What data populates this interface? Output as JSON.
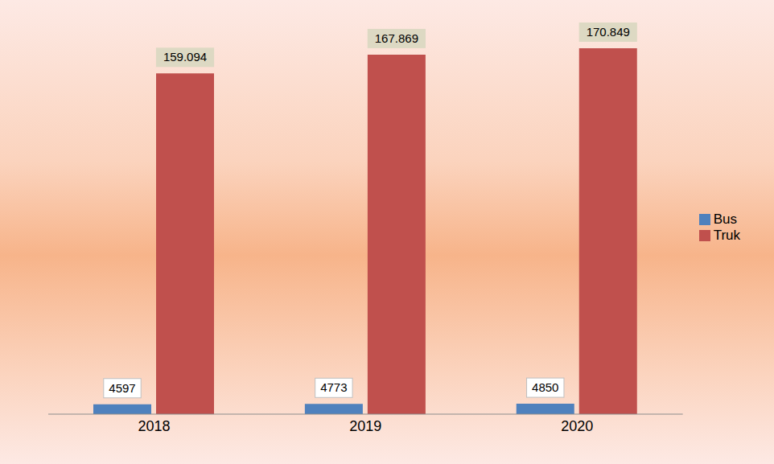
{
  "chart_data": {
    "type": "bar",
    "categories": [
      "2018",
      "2019",
      "2020"
    ],
    "series": [
      {
        "name": "Bus",
        "color": "#4f81bd",
        "values": [
          4597,
          4773,
          4850
        ]
      },
      {
        "name": "Truk",
        "color": "#c0504d",
        "values": [
          159094,
          167869,
          170849
        ],
        "value_labels": [
          "159.094",
          "167.869",
          "170.849"
        ]
      }
    ],
    "data_labels": true,
    "legend": "right",
    "tick_labels": "x"
  }
}
